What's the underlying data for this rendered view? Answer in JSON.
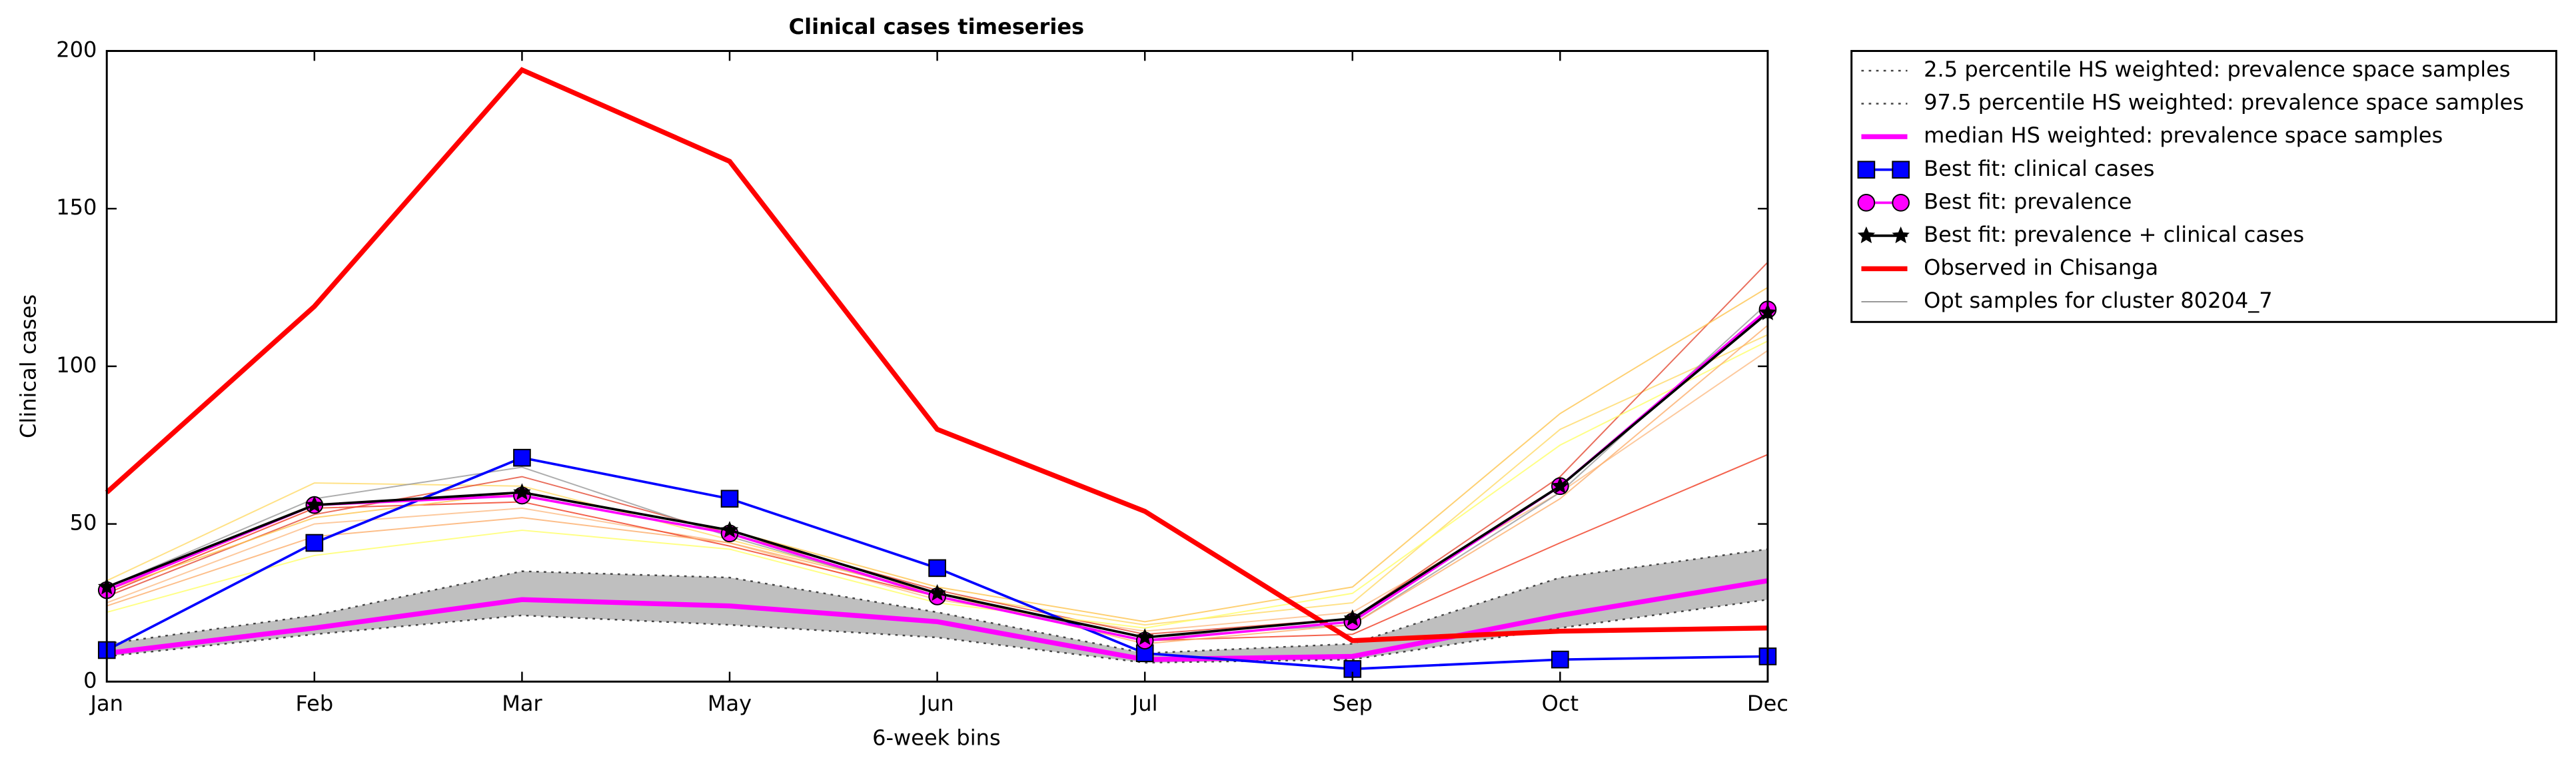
{
  "chart_data": {
    "type": "line",
    "title": "Clinical cases timeseries",
    "xlabel": "6-week bins",
    "ylabel": "Clinical cases",
    "categories": [
      "Jan",
      "Feb",
      "Mar",
      "May",
      "Jun",
      "Jul",
      "Sep",
      "Oct",
      "Dec"
    ],
    "ylim": [
      0,
      200
    ],
    "yticks": [
      0,
      50,
      100,
      150,
      200
    ],
    "band_color": "#bfbfbf",
    "series": [
      {
        "name": "2.5 percentile HS weighted: prevalence space samples",
        "color": "#444444",
        "linestyle": "dotted",
        "linewidth": 1,
        "values": [
          8,
          15,
          21,
          18,
          14,
          6,
          7,
          17,
          26
        ]
      },
      {
        "name": "97.5 percentile HS weighted: prevalence space samples",
        "color": "#444444",
        "linestyle": "dotted",
        "linewidth": 1,
        "values": [
          12,
          21,
          35,
          33,
          22,
          9,
          12,
          33,
          42
        ]
      },
      {
        "name": "median HS weighted: prevalence space samples",
        "color": "#ff00ff",
        "linestyle": "solid",
        "linewidth": 3,
        "values": [
          9,
          17,
          26,
          24,
          19,
          7,
          8,
          21,
          32
        ]
      },
      {
        "name": "Best fit: clinical cases",
        "color": "#0000ff",
        "linestyle": "solid",
        "linewidth": 1.5,
        "marker": "square",
        "values": [
          10,
          44,
          71,
          58,
          36,
          9,
          4,
          7,
          8
        ]
      },
      {
        "name": "Best fit: prevalence",
        "color": "#ff00ff",
        "linestyle": "solid",
        "linewidth": 1.5,
        "marker": "circle",
        "values": [
          29,
          56,
          59,
          47,
          27,
          13,
          19,
          62,
          118
        ]
      },
      {
        "name": "Best fit: prevalence + clinical cases",
        "color": "#000000",
        "linestyle": "solid",
        "linewidth": 1.5,
        "marker": "star",
        "values": [
          30,
          56,
          60,
          48,
          28,
          14,
          20,
          62,
          117
        ]
      },
      {
        "name": "Observed in Chisanga",
        "color": "#ff0000",
        "linestyle": "solid",
        "linewidth": 3,
        "values": [
          60,
          119,
          194,
          165,
          80,
          54,
          13,
          16,
          17
        ]
      },
      {
        "name": "Opt samples for cluster 80204_7",
        "color": "#999999",
        "linestyle": "solid",
        "linewidth": 0.8,
        "samples": [
          {
            "color": "#ffd966",
            "values": [
              32,
              63,
              62,
              45,
              28,
              18,
              25,
              80,
              110
            ]
          },
          {
            "color": "#fdbb84",
            "values": [
              25,
              50,
              55,
              44,
              26,
              16,
              22,
              60,
              105
            ]
          },
          {
            "color": "#e34a33",
            "values": [
              27,
              53,
              65,
              47,
              29,
              15,
              20,
              65,
              133
            ]
          },
          {
            "color": "#999999",
            "values": [
              30,
              58,
              68,
              46,
              27,
              14,
              18,
              60,
              120
            ]
          },
          {
            "color": "#ffff66",
            "values": [
              22,
              40,
              48,
              42,
              25,
              17,
              28,
              75,
              108
            ]
          },
          {
            "color": "#f03b20",
            "values": [
              28,
              55,
              57,
              43,
              27,
              13,
              15,
              44,
              72
            ]
          },
          {
            "color": "#fec44f",
            "values": [
              29,
              52,
              60,
              48,
              30,
              19,
              30,
              85,
              125
            ]
          },
          {
            "color": "#fdae6b",
            "values": [
              24,
              46,
              52,
              44,
              28,
              12,
              18,
              58,
              113
            ]
          }
        ]
      }
    ]
  }
}
